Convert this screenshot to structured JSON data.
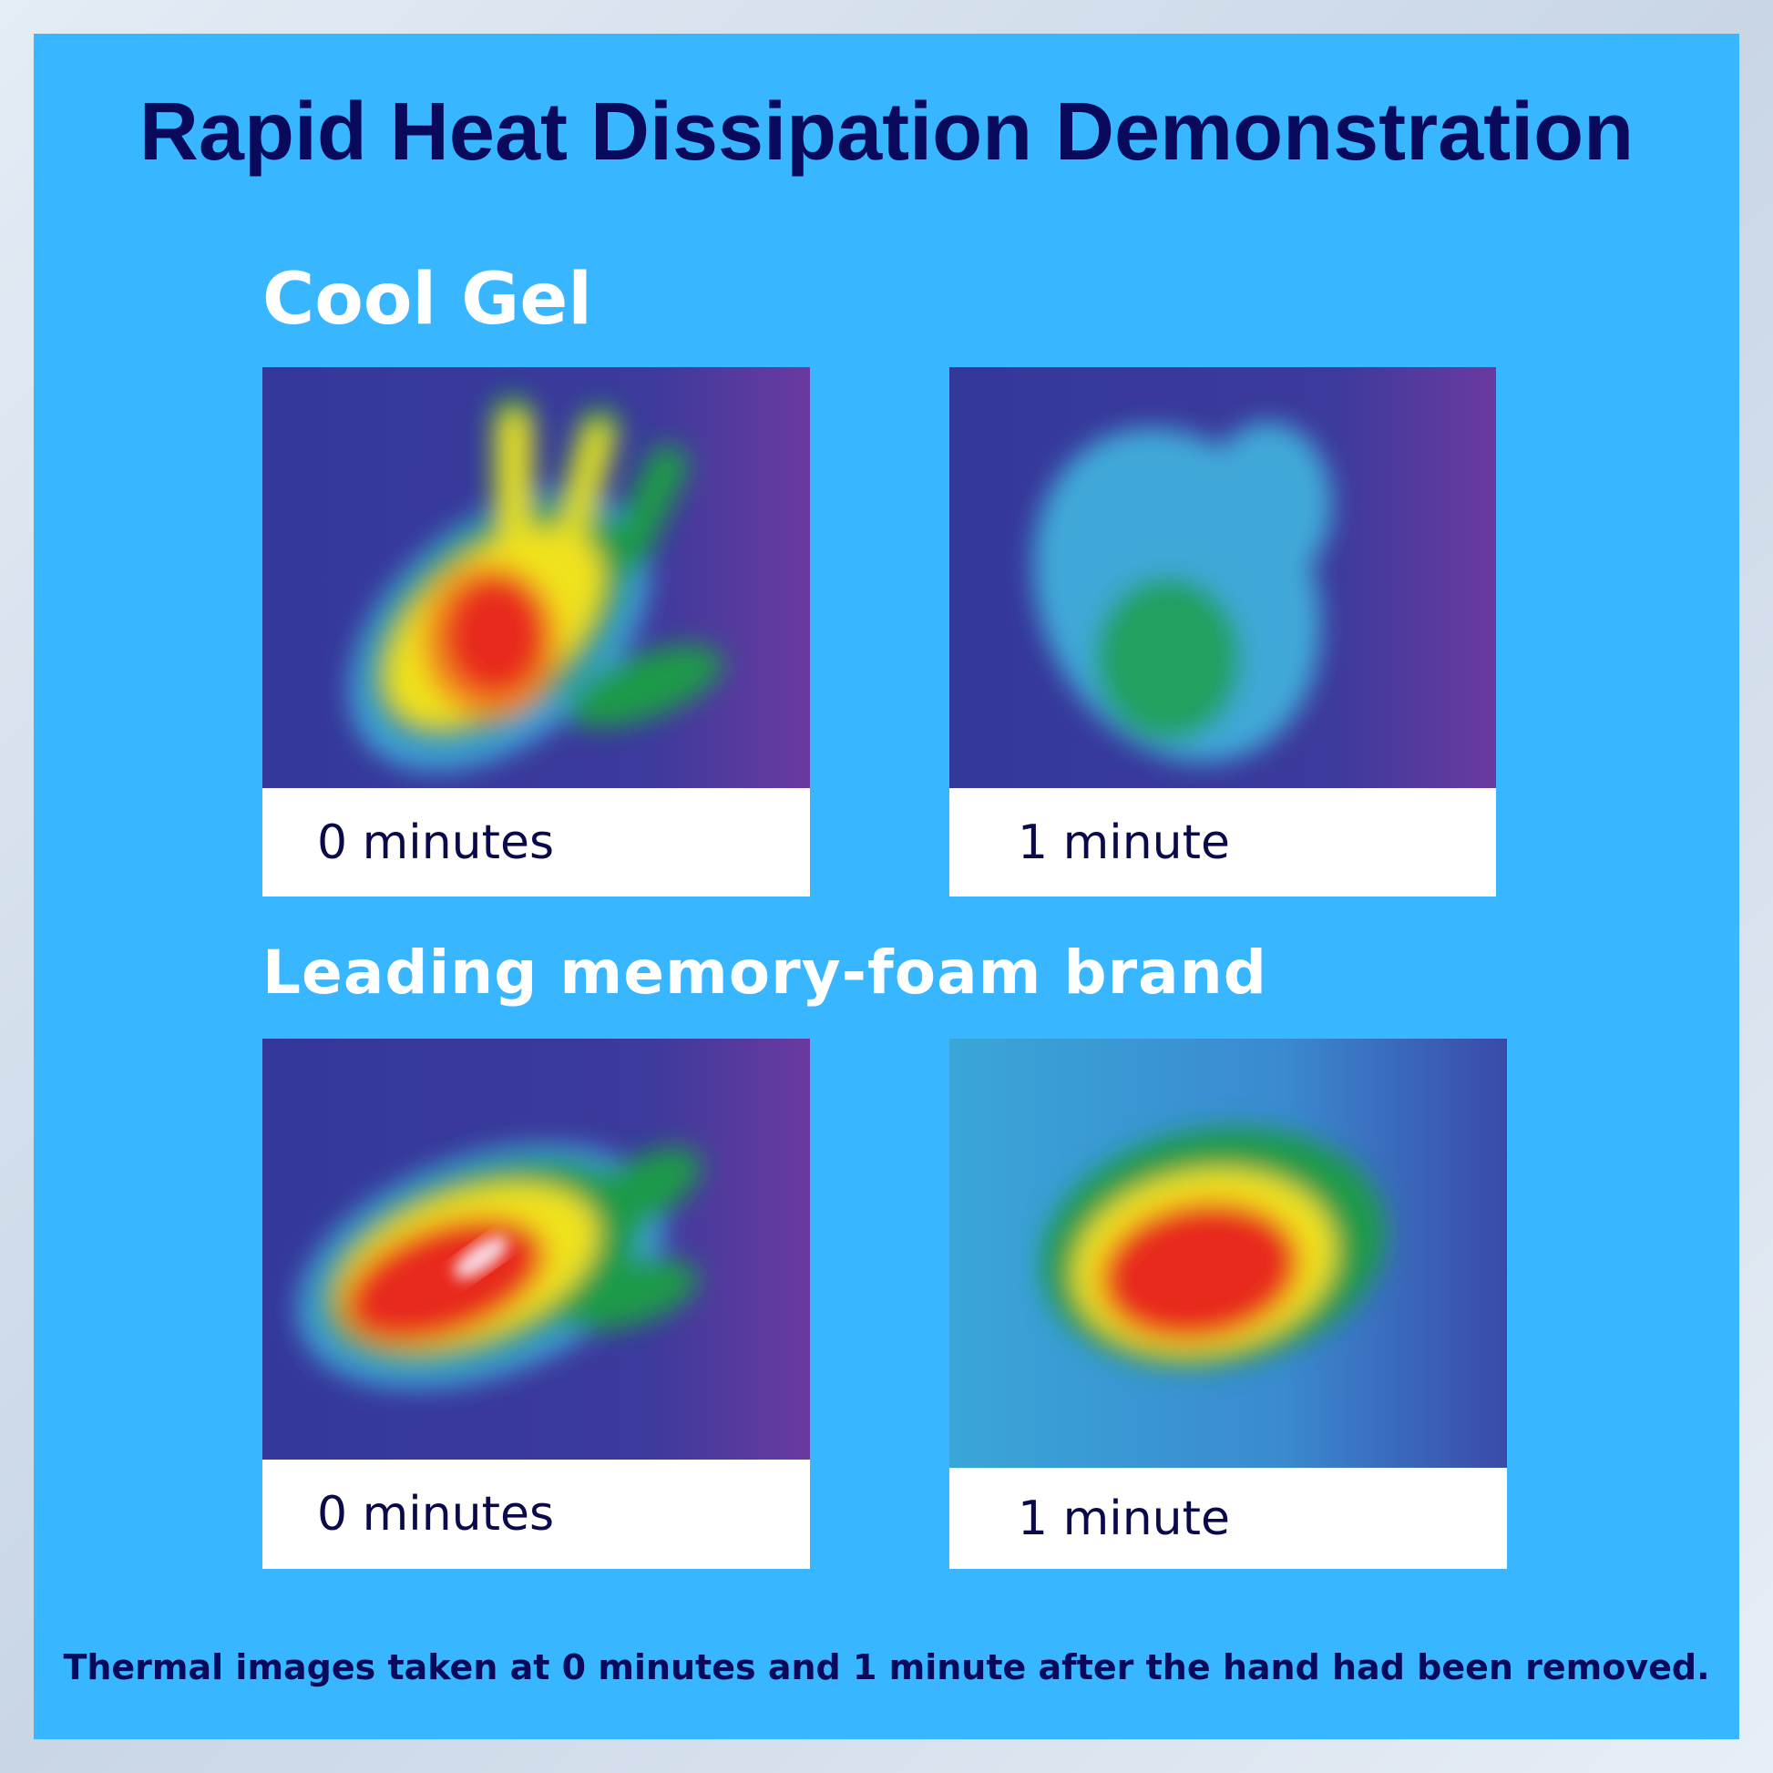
{
  "title": "Rapid Heat Dissipation Demonstration",
  "sections": [
    {
      "heading": "Cool Gel",
      "images": [
        {
          "caption": "0 minutes"
        },
        {
          "caption": "1 minute"
        }
      ]
    },
    {
      "heading": "Leading memory-foam brand",
      "images": [
        {
          "caption": "0 minutes"
        },
        {
          "caption": "1 minute"
        }
      ]
    }
  ],
  "footnote": "Thermal images taken at 0 minutes and 1 minute after the hand had been removed."
}
